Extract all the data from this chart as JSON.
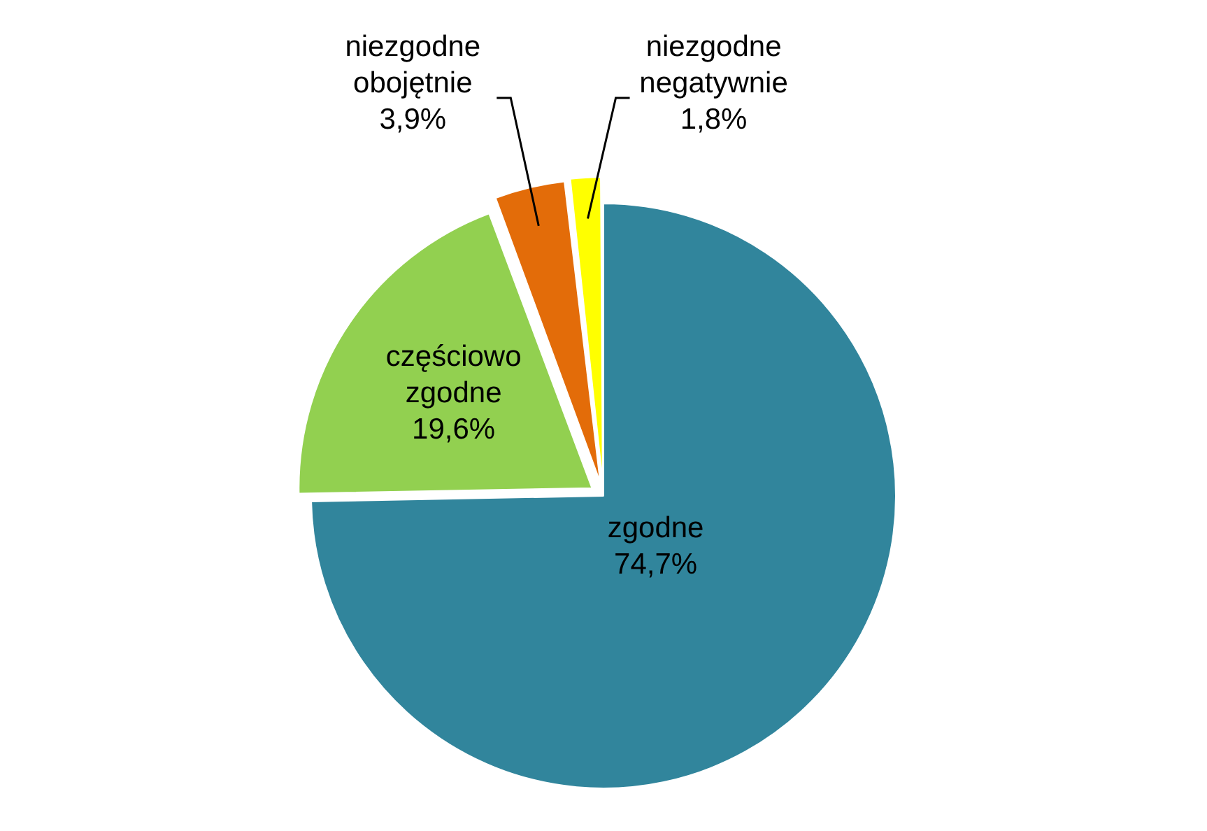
{
  "chart_data": {
    "type": "pie",
    "categories": [
      "zgodne",
      "częściowo zgodne",
      "niezgodne obojętnie",
      "niezgodne negatywnie"
    ],
    "values": [
      74.7,
      19.6,
      3.9,
      1.8
    ],
    "colors": [
      "#31859c",
      "#92d050",
      "#e36c09",
      "#ffff00"
    ],
    "value_labels": [
      "74,7%",
      "19,6%",
      "3,9%",
      "1,8%"
    ],
    "legend": false
  }
}
